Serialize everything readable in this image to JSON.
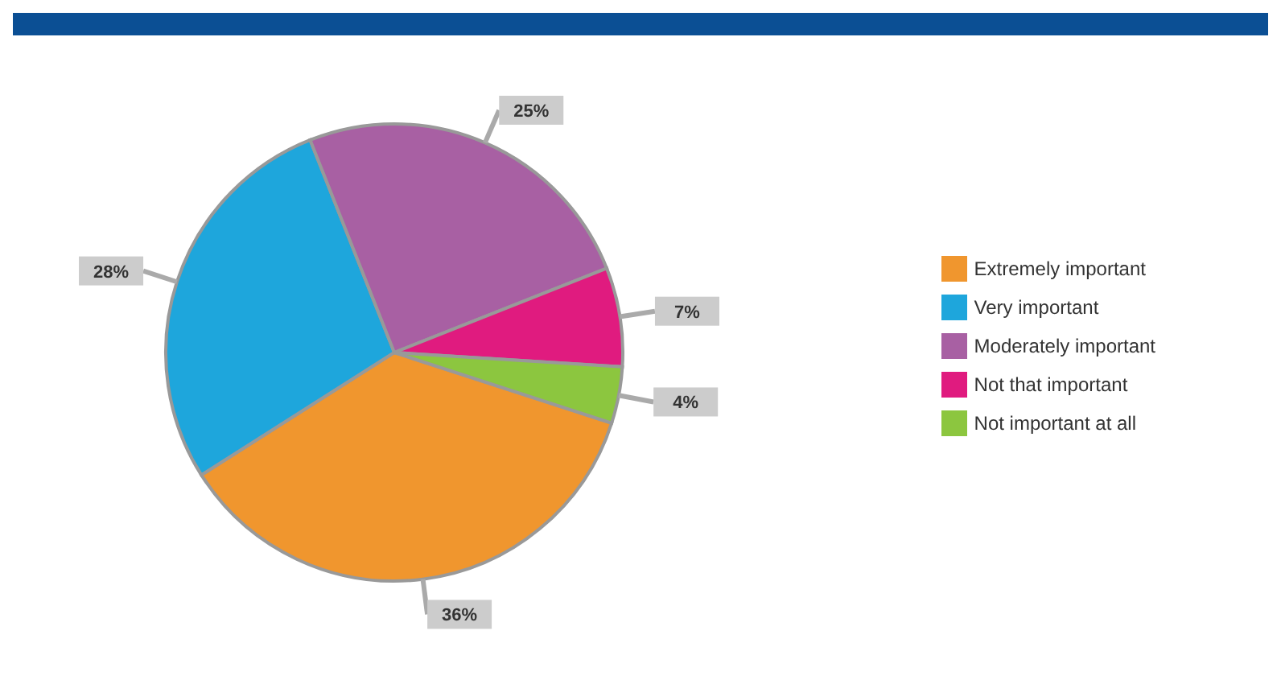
{
  "chart_data": {
    "type": "pie",
    "categories": [
      "Extremely important",
      "Very important",
      "Moderately important",
      "Not that important",
      "Not important at all"
    ],
    "values": [
      36,
      28,
      25,
      7,
      4
    ],
    "colors": [
      "#f0962e",
      "#1ea6dc",
      "#a860a3",
      "#e01b7f",
      "#8cc63f"
    ],
    "value_labels": [
      "36%",
      "28%",
      "25%",
      "7%",
      "4%"
    ],
    "legend": "right"
  }
}
